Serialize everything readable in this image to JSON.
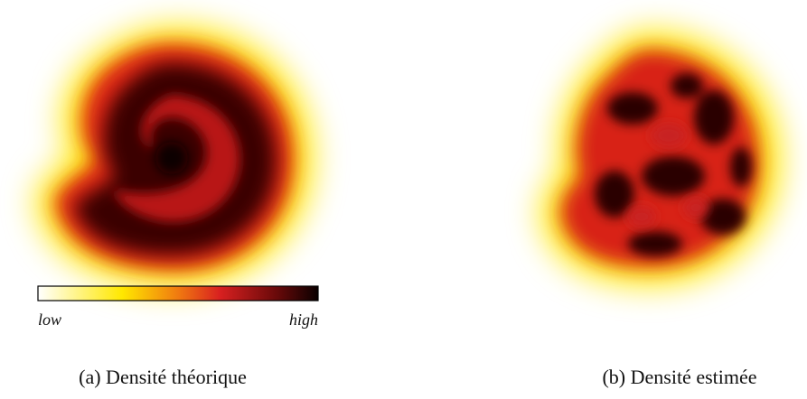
{
  "figure": {
    "panels": [
      {
        "caption": "(a) Densité théorique"
      },
      {
        "caption": "(b) Densité estimée"
      }
    ],
    "colorbar": {
      "low_label": "low",
      "high_label": "high"
    }
  }
}
